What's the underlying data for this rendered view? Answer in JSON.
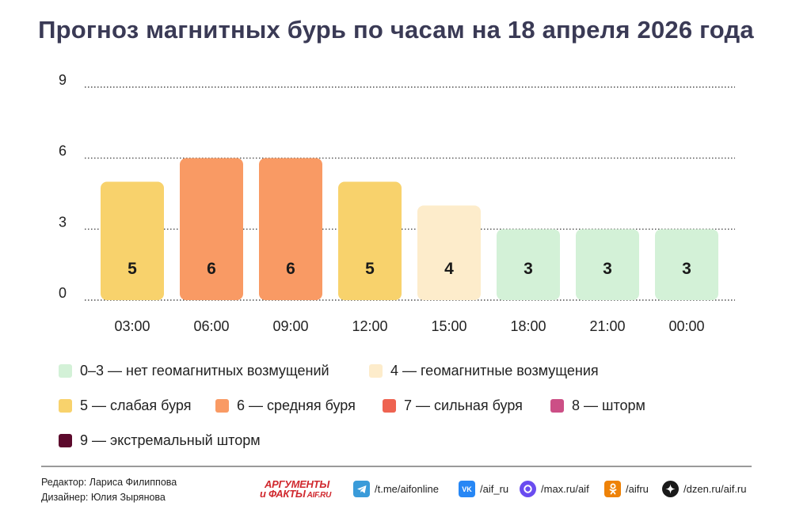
{
  "title": "Прогноз магнитных бурь по часам на 18 апреля 2026 года",
  "chart_data": {
    "type": "bar",
    "categories": [
      "03:00",
      "06:00",
      "09:00",
      "12:00",
      "15:00",
      "18:00",
      "21:00",
      "00:00"
    ],
    "values": [
      5,
      6,
      6,
      5,
      4,
      3,
      3,
      3
    ],
    "yticks": [
      0,
      3,
      6,
      9
    ],
    "ylim": [
      0,
      9
    ],
    "grid": "dotted horizontal",
    "data_labels": true,
    "colors_by_level": {
      "low": "#d3f1d7",
      "4": "#fdeccb",
      "5": "#f8d26c",
      "6": "#f99a64",
      "7": "#ee6351",
      "8": "#cc4f86",
      "9": "#5c0a2c"
    }
  },
  "legend": [
    {
      "label": "0–3 — нет геомагнитных возмущений",
      "color": "#d3f1d7"
    },
    {
      "label": "4 — геомагнитные возмущения",
      "color": "#fdeccb"
    },
    {
      "label": "5 — слабая буря",
      "color": "#f8d26c"
    },
    {
      "label": "6 — средняя буря",
      "color": "#f99a64"
    },
    {
      "label": "7 — сильная буря",
      "color": "#ee6351"
    },
    {
      "label": "8 — шторм",
      "color": "#cc4f86"
    },
    {
      "label": "9 — экстремальный шторм",
      "color": "#5c0a2c"
    }
  ],
  "credits": {
    "editor": "Редактор: Лариса Филиппова",
    "designer": "Дизайнер: Юлия Зырянова"
  },
  "brand": {
    "line1": "АРГУМЕНТЫ",
    "line2": "и ФАКТЫ",
    "site": "AIF.RU"
  },
  "social": [
    {
      "icon": "telegram-icon",
      "text": "/t.me/aifonline",
      "color": "#3a9bd9"
    },
    {
      "icon": "vk-icon",
      "text": "/aif_ru",
      "color": "#2787f5"
    },
    {
      "icon": "max-icon",
      "text": "/max.ru/aif",
      "color": "#6a4cf0"
    },
    {
      "icon": "odnoklassniki-icon",
      "text": "/aifru",
      "color": "#ee8208"
    },
    {
      "icon": "dzen-icon",
      "text": "/dzen.ru/aif.ru",
      "color": "#1a1a1a"
    }
  ]
}
